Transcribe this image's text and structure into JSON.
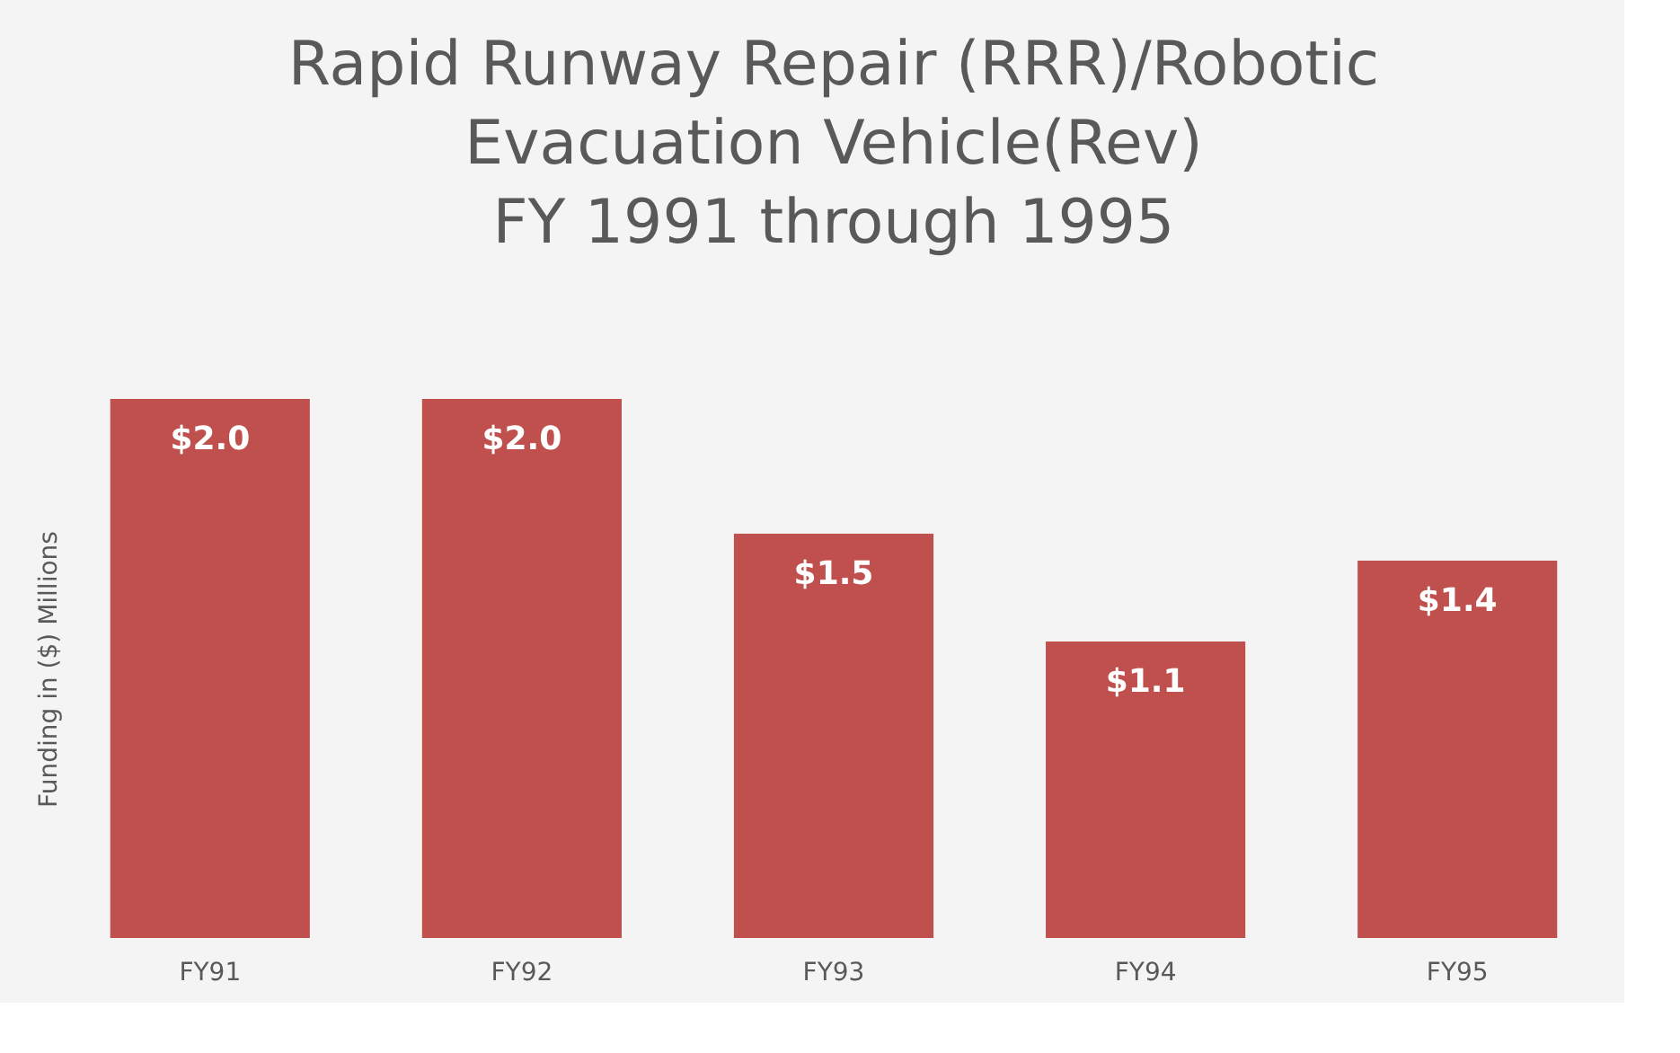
{
  "chart_data": {
    "type": "bar",
    "title": "Rapid Runway Repair (RRR)/Robotic\nEvacuation Vehicle(Rev)\nFY 1991 through 1995",
    "ylabel": "Funding in ($) Millions",
    "categories": [
      "FY91",
      "FY92",
      "FY93",
      "FY94",
      "FY95"
    ],
    "values": [
      2.0,
      2.0,
      1.5,
      1.1,
      1.4
    ],
    "value_labels": [
      "$2.0",
      "$2.0",
      "$1.5",
      "$1.1",
      "$1.4"
    ],
    "color": "#c0504d",
    "grid": false
  }
}
